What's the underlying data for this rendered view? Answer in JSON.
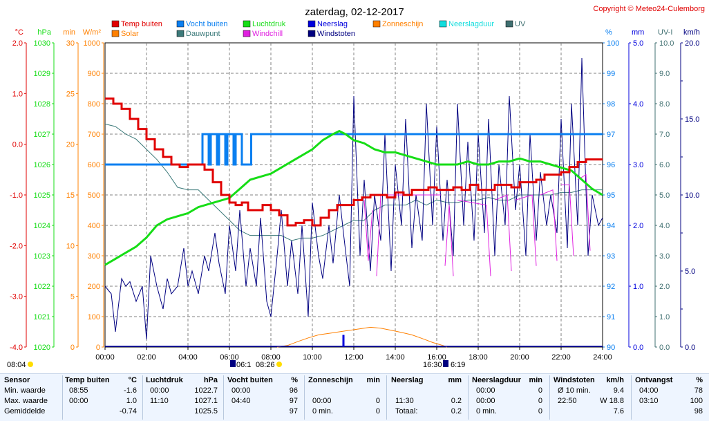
{
  "title": "zaterdag, 02-12-2017",
  "copyright": "Copyright © Meteo24-Culemborg",
  "colors": {
    "temp": "#e00000",
    "vocht": "#0a7ff0",
    "luchtdruk": "#16dd16",
    "neerslag": "#0000dd",
    "zonneschijn": "#ff8000",
    "neerslagduur": "#11dddd",
    "uv": "#3f6f70",
    "solar": "#ff8000",
    "dauwpunt": "#3c7a7a",
    "windchill": "#e020e0",
    "windstoten": "#000080"
  },
  "legend": [
    {
      "label": "Temp buiten",
      "key": "temp"
    },
    {
      "label": "Vocht buiten",
      "key": "vocht"
    },
    {
      "label": "Luchtdruk",
      "key": "luchtdruk"
    },
    {
      "label": "Neerslag",
      "key": "neerslag"
    },
    {
      "label": "Zonneschijn",
      "key": "zonneschijn"
    },
    {
      "label": "Neerslagduur",
      "key": "neerslagduur"
    },
    {
      "label": "UV",
      "key": "uv"
    },
    {
      "label": "Solar",
      "key": "solar"
    },
    {
      "label": "Dauwpunt",
      "key": "dauwpunt"
    },
    {
      "label": "Windchill",
      "key": "windchill"
    },
    {
      "label": "Windstoten",
      "key": "windstoten"
    }
  ],
  "axes": [
    {
      "unit": "°C",
      "color": "#e00000",
      "ticks": [
        "2.0",
        "1.0",
        "0.0",
        "-1.0",
        "-2.0",
        "-3.0",
        "-4.0"
      ],
      "range": [
        -4,
        2
      ]
    },
    {
      "unit": "hPa",
      "color": "#16dd16",
      "ticks": [
        "1030",
        "1029",
        "1028",
        "1027",
        "1026",
        "1025",
        "1024",
        "1023",
        "1022",
        "1021",
        "1020"
      ],
      "range": [
        1020,
        1030
      ]
    },
    {
      "unit": "min",
      "color": "#ff8000",
      "ticks": [
        "30",
        "25",
        "20",
        "15",
        "10",
        "5",
        "0"
      ],
      "range": [
        0,
        30
      ]
    },
    {
      "unit": "W/m²",
      "color": "#ff8000",
      "ticks": [
        "1000",
        "900",
        "800",
        "700",
        "600",
        "500",
        "400",
        "300",
        "200",
        "100",
        "0"
      ],
      "range": [
        0,
        1000
      ]
    },
    {
      "unit": "%",
      "color": "#0a7ff0",
      "ticks": [
        "100",
        "99",
        "98",
        "97",
        "96",
        "95",
        "94",
        "93",
        "92",
        "91",
        "90"
      ],
      "range": [
        90,
        100
      ]
    },
    {
      "unit": "mm",
      "color": "#0000dd",
      "ticks": [
        "5.0",
        "4.0",
        "3.0",
        "2.0",
        "1.0",
        "0.0"
      ],
      "range": [
        0,
        5
      ]
    },
    {
      "unit": "UV-I",
      "color": "#3f6f70",
      "ticks": [
        "10.0",
        "9.0",
        "8.0",
        "7.0",
        "6.0",
        "5.0",
        "4.0",
        "3.0",
        "2.0",
        "1.0",
        "0.0"
      ],
      "range": [
        0,
        10
      ]
    },
    {
      "unit": "km/h",
      "color": "#000080",
      "ticks": [
        "20.0",
        "",
        "15.0",
        "",
        "10.0",
        "",
        "5.0",
        "",
        "0.0"
      ],
      "range": [
        0,
        20
      ]
    }
  ],
  "x_ticks": [
    "00:00",
    "02:00",
    "04:00",
    "06:00",
    "08:00",
    "10:00",
    "12:00",
    "14:00",
    "16:00",
    "18:00",
    "20:00",
    "22:00",
    "24:00"
  ],
  "sun": {
    "sunrise": "08:04",
    "sunrise_bar": "06:1",
    "sunrise_time": "08:26",
    "sunset": "16:30",
    "sunset_bar": "6:19"
  },
  "chart_data": {
    "type": "line",
    "x_unit": "hour",
    "xlim": [
      0,
      24
    ],
    "series": [
      {
        "name": "Temp buiten",
        "unit": "°C",
        "x": [
          0,
          0.4,
          0.8,
          1.2,
          1.6,
          2,
          2.4,
          2.8,
          3.2,
          3.6,
          4,
          4.4,
          4.8,
          5.2,
          5.6,
          6,
          6.3,
          6.6,
          6.9,
          7.2,
          7.6,
          8,
          8.4,
          8.8,
          9.2,
          9.6,
          10,
          10.4,
          10.8,
          11.2,
          11.6,
          12,
          12.4,
          12.8,
          13.2,
          13.6,
          14,
          14.4,
          14.8,
          15.2,
          15.6,
          16,
          16.4,
          16.8,
          17.2,
          17.6,
          18,
          18.4,
          18.8,
          19.2,
          19.6,
          20,
          20.4,
          20.8,
          21.2,
          21.6,
          22,
          22.4,
          22.8,
          23.2,
          23.6,
          24
        ],
        "values": [
          0.9,
          0.8,
          0.7,
          0.5,
          0.3,
          0.1,
          -0.1,
          -0.25,
          -0.4,
          -0.45,
          -0.4,
          -0.4,
          -0.5,
          -0.75,
          -1.0,
          -1.15,
          -1.2,
          -1.15,
          -1.3,
          -1.3,
          -1.2,
          -1.3,
          -1.4,
          -1.6,
          -1.55,
          -1.5,
          -1.6,
          -1.45,
          -1.3,
          -1.2,
          -1.2,
          -1.1,
          -1.05,
          -1.0,
          -1.0,
          -1.05,
          -0.95,
          -1.0,
          -0.9,
          -0.9,
          -0.85,
          -0.9,
          -0.9,
          -0.85,
          -0.9,
          -0.8,
          -0.9,
          -0.9,
          -0.8,
          -0.8,
          -0.85,
          -0.75,
          -0.75,
          -0.7,
          -0.6,
          -0.6,
          -0.55,
          -0.45,
          -0.35,
          -0.3,
          -0.3,
          -0.3
        ]
      },
      {
        "name": "Vocht buiten",
        "unit": "%",
        "x": [
          0,
          4.5,
          4.7,
          5.0,
          5.1,
          5.4,
          5.5,
          5.8,
          5.9,
          6.2,
          6.3,
          6.6,
          6.8,
          7.0,
          7.05,
          24
        ],
        "values": [
          96,
          96,
          97,
          96,
          97,
          96,
          97,
          96,
          97,
          96,
          97,
          96,
          96,
          96,
          97,
          97
        ]
      },
      {
        "name": "Luchtdruk",
        "unit": "hPa",
        "x": [
          0,
          0.5,
          1,
          1.5,
          2,
          2.5,
          3,
          3.5,
          4,
          4.5,
          5,
          5.5,
          6,
          6.5,
          7,
          7.5,
          8,
          8.5,
          9,
          9.5,
          10,
          10.5,
          11,
          11.3,
          11.6,
          12,
          12.5,
          13,
          13.5,
          14,
          14.5,
          15,
          15.5,
          16,
          16.5,
          17,
          17.5,
          18,
          18.5,
          19,
          19.5,
          20,
          20.5,
          21,
          21.5,
          22,
          22.5,
          23,
          23.5,
          24
        ],
        "values": [
          1022.7,
          1022.9,
          1023.1,
          1023.3,
          1023.6,
          1024.0,
          1024.2,
          1024.3,
          1024.4,
          1024.6,
          1024.7,
          1024.8,
          1024.9,
          1025.2,
          1025.5,
          1025.6,
          1025.7,
          1025.9,
          1026.1,
          1026.3,
          1026.5,
          1026.8,
          1027.0,
          1027.1,
          1027.0,
          1026.8,
          1026.7,
          1026.5,
          1026.4,
          1026.4,
          1026.3,
          1026.2,
          1026.1,
          1026.0,
          1026.0,
          1026.0,
          1026.1,
          1026.0,
          1026.0,
          1026.1,
          1026.1,
          1026.2,
          1026.1,
          1026.1,
          1026.0,
          1025.9,
          1025.8,
          1025.5,
          1025.2,
          1025.0
        ]
      },
      {
        "name": "Dauwpunt",
        "unit": "°C",
        "x": [
          0,
          0.5,
          1,
          1.5,
          2,
          2.5,
          3,
          3.5,
          4,
          4.5,
          5,
          5.5,
          6,
          6.5,
          7,
          7.5,
          8,
          8.5,
          9,
          9.5,
          10,
          10.5,
          11,
          11.5,
          12,
          12.5,
          13,
          13.5,
          14,
          14.5,
          15,
          15.5,
          16,
          16.5,
          17,
          17.5,
          18,
          18.5,
          19,
          19.5,
          20,
          20.5,
          21,
          21.5,
          22,
          22.5,
          23,
          23.5,
          24
        ],
        "values": [
          0.4,
          0.35,
          0.2,
          0.1,
          -0.1,
          -0.3,
          -0.55,
          -0.85,
          -0.9,
          -0.9,
          -1.1,
          -1.3,
          -1.5,
          -1.7,
          -1.8,
          -1.8,
          -1.8,
          -1.8,
          -1.9,
          -1.85,
          -1.85,
          -1.8,
          -1.7,
          -1.6,
          -1.5,
          -1.5,
          -1.3,
          -1.2,
          -1.2,
          -1.2,
          -1.1,
          -1.2,
          -1.1,
          -1.15,
          -1.15,
          -1.1,
          -1.1,
          -1.05,
          -1.1,
          -1.1,
          -1.0,
          -1.0,
          -1.0,
          -1.0,
          -0.95,
          -0.95,
          -0.9,
          -0.9,
          -0.9
        ]
      },
      {
        "name": "Windstoten",
        "unit": "km/h",
        "x": [
          0,
          0.3,
          0.5,
          0.8,
          1.0,
          1.2,
          1.5,
          1.8,
          2.0,
          2.2,
          2.5,
          2.8,
          3.0,
          3.2,
          3.5,
          3.8,
          4.0,
          4.2,
          4.5,
          4.8,
          5.0,
          5.3,
          5.5,
          5.8,
          6.0,
          6.3,
          6.5,
          6.8,
          7.0,
          7.3,
          7.5,
          7.8,
          8.0,
          8.3,
          8.5,
          8.8,
          9.0,
          9.3,
          9.5,
          9.8,
          10.0,
          10.3,
          10.5,
          10.8,
          11.0,
          11.3,
          11.5,
          11.8,
          12.0,
          12.3,
          12.5,
          12.8,
          13.0,
          13.3,
          13.5,
          13.8,
          14.0,
          14.3,
          14.5,
          14.8,
          15.0,
          15.3,
          15.5,
          15.8,
          16.0,
          16.3,
          16.5,
          16.8,
          17.0,
          17.3,
          17.5,
          17.8,
          18.0,
          18.3,
          18.5,
          18.8,
          19.0,
          19.3,
          19.5,
          19.8,
          20.0,
          20.3,
          20.5,
          20.8,
          21.0,
          21.3,
          21.5,
          21.8,
          22.0,
          22.3,
          22.5,
          22.8,
          23.0,
          23.3,
          23.5,
          23.8,
          24.0
        ],
        "values": [
          4.0,
          3.5,
          1.0,
          4.5,
          4.0,
          4.3,
          3.0,
          4.0,
          0.5,
          6.0,
          4.0,
          2.5,
          4.5,
          3.5,
          4.0,
          6.5,
          4.0,
          5.0,
          3.5,
          6.0,
          5.0,
          7.5,
          5.5,
          3.5,
          8.0,
          5.0,
          9.0,
          4.0,
          6.5,
          4.0,
          8.5,
          3.0,
          2.0,
          6.0,
          9.0,
          4.0,
          7.0,
          3.5,
          8.0,
          2.0,
          9.5,
          6.0,
          4.5,
          8.0,
          5.5,
          10.0,
          7.5,
          4.0,
          16.5,
          6.0,
          11.0,
          5.0,
          10.0,
          7.0,
          14.0,
          5.0,
          12.0,
          8.0,
          15.0,
          6.5,
          10.0,
          7.0,
          16.0,
          8.0,
          14.5,
          7.0,
          11.0,
          6.0,
          16.0,
          8.0,
          13.5,
          7.0,
          14.0,
          7.5,
          15.0,
          6.0,
          12.0,
          8.0,
          16.5,
          9.0,
          12.0,
          6.0,
          14.0,
          7.0,
          11.5,
          8.0,
          10.0,
          7.5,
          15.0,
          6.5,
          16.0,
          8.0,
          19.0,
          6.0,
          10.0,
          8.0,
          8.5
        ]
      },
      {
        "name": "Windchill",
        "unit": "°C",
        "x": [
          12.5,
          12.7,
          12.9,
          13.1,
          13.3,
          16.2,
          16.4,
          16.6,
          16.8,
          17.0,
          18.4,
          18.6,
          18.8,
          19.4,
          19.6,
          19.8,
          20.6,
          20.8,
          21.0,
          21.6,
          21.8,
          22.0,
          22.4,
          22.6,
          22.8,
          23.2,
          23.4,
          23.6
        ],
        "values": [
          -1.1,
          -2.3,
          -1.3,
          -2.6,
          -1.0,
          -1.0,
          -2.4,
          -1.2,
          -2.6,
          -1.1,
          -1.2,
          -2.6,
          -1.1,
          -1.0,
          -2.5,
          -1.1,
          -1.0,
          -2.4,
          -1.0,
          -0.9,
          -2.3,
          -0.8,
          -0.8,
          -2.2,
          -0.7,
          -0.6,
          -2.1,
          -0.5
        ]
      },
      {
        "name": "Solar",
        "unit": "W/m²",
        "x": [
          8.3,
          8.8,
          9.3,
          9.8,
          10.3,
          10.8,
          11.3,
          11.8,
          12.3,
          12.8,
          13.3,
          13.8,
          14.3,
          14.8,
          15.3,
          15.8,
          16.3,
          16.5
        ],
        "values": [
          0,
          5,
          18,
          30,
          40,
          45,
          50,
          55,
          60,
          65,
          62,
          55,
          48,
          40,
          28,
          15,
          5,
          0
        ]
      },
      {
        "name": "Neerslag",
        "unit": "mm",
        "x": [
          11.5
        ],
        "values": [
          0.2
        ]
      }
    ]
  },
  "stats": {
    "sensor": {
      "header": "Sensor",
      "rows": [
        "Min. waarde",
        "Max. waarde",
        "Gemiddelde"
      ]
    },
    "temp": {
      "header": "Temp buiten",
      "unit": "°C",
      "rows": [
        [
          "08:55",
          "-1.6"
        ],
        [
          "00:00",
          "1.0"
        ],
        [
          "",
          "-0.74"
        ]
      ]
    },
    "luchtdruk": {
      "header": "Luchtdruk",
      "unit": "hPa",
      "rows": [
        [
          "00:00",
          "1022.7"
        ],
        [
          "11:10",
          "1027.1"
        ],
        [
          "",
          "1025.5"
        ]
      ]
    },
    "vocht": {
      "header": "Vocht buiten",
      "unit": "%",
      "rows": [
        [
          "00:00",
          "96"
        ],
        [
          "04:40",
          "97"
        ],
        [
          "",
          "97"
        ]
      ]
    },
    "zon": {
      "header": "Zonneschijn",
      "unit": "min",
      "rows": [
        [
          "",
          ""
        ],
        [
          "00:00",
          "0"
        ],
        [
          "0 min.",
          "0"
        ]
      ]
    },
    "neerslag": {
      "header": "Neerslag",
      "unit": "mm",
      "rows": [
        [
          "",
          ""
        ],
        [
          "11:30",
          "0.2"
        ],
        [
          "Totaal:",
          "0.2"
        ]
      ]
    },
    "duur": {
      "header": "Neerslagduur",
      "unit": "min",
      "rows": [
        [
          "00:00",
          "0"
        ],
        [
          "00:00",
          "0"
        ],
        [
          "0 min.",
          "0"
        ]
      ]
    },
    "wind": {
      "header": "Windstoten",
      "unit": "km/h",
      "rows": [
        [
          "Ø 10 min.",
          "9.4"
        ],
        [
          "22:50",
          "W 18.8"
        ],
        [
          "",
          "7.6"
        ]
      ]
    },
    "ontvangst": {
      "header": "Ontvangst",
      "unit": "%",
      "rows": [
        [
          "04:00",
          "78"
        ],
        [
          "03:10",
          "100"
        ],
        [
          "",
          "98"
        ]
      ]
    }
  }
}
